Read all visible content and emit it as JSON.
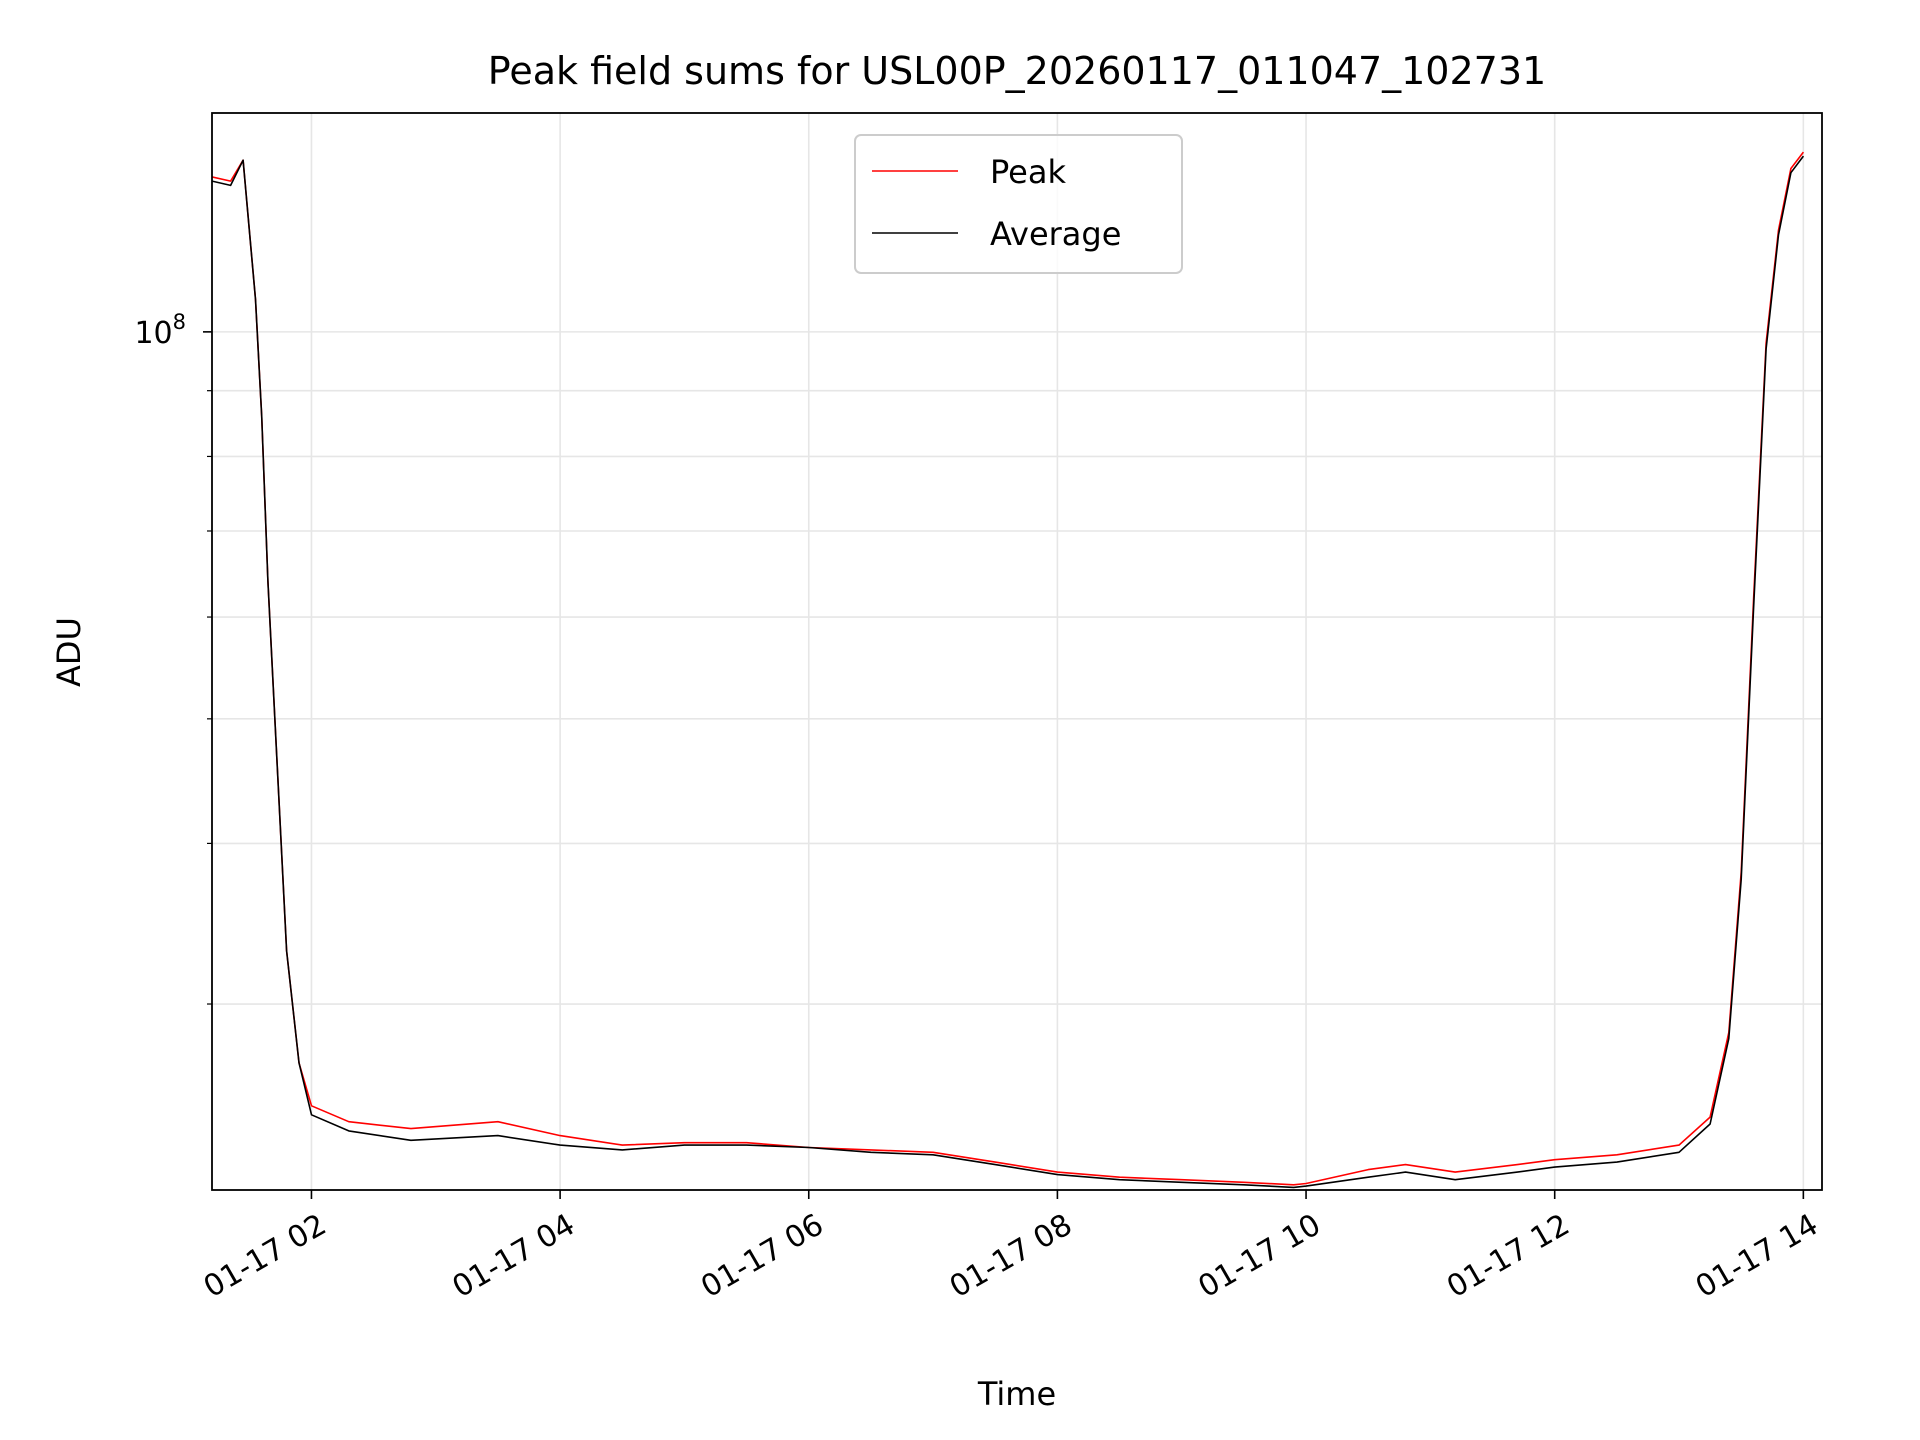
{
  "chart_data": {
    "type": "line",
    "title": "Peak field sums for USL00P_20260117_011047_102731",
    "xlabel": "Time",
    "ylabel": "ADU",
    "y_scale": "log",
    "ylim": [
      21500000,
      148000000
    ],
    "xlim_hours": [
      1.2,
      14.15
    ],
    "x_ticks": [
      {
        "hour": 2,
        "label": "01-17 02"
      },
      {
        "hour": 4,
        "label": "01-17 04"
      },
      {
        "hour": 6,
        "label": "01-17 06"
      },
      {
        "hour": 8,
        "label": "01-17 08"
      },
      {
        "hour": 10,
        "label": "01-17 10"
      },
      {
        "hour": 12,
        "label": "01-17 12"
      },
      {
        "hour": 14,
        "label": "01-17 14"
      }
    ],
    "y_major_ticks": [
      {
        "value": 100000000,
        "base": "10",
        "exponent": "8"
      }
    ],
    "y_minor_ticks": [
      30000000,
      40000000,
      50000000,
      60000000,
      70000000,
      80000000,
      90000000,
      200000000
    ],
    "grid": true,
    "legend_position": "top-center",
    "colors": {
      "peak": "#ff0000",
      "average": "#000000",
      "grid": "#e6e6e6"
    },
    "series": [
      {
        "name": "Peak",
        "color": "#ff0000",
        "x_hours": [
          1.2,
          1.35,
          1.45,
          1.55,
          1.6,
          1.65,
          1.72,
          1.8,
          1.9,
          2.0,
          2.3,
          2.8,
          3.5,
          4.0,
          4.5,
          5.0,
          5.5,
          6.0,
          6.5,
          7.0,
          7.5,
          8.0,
          8.5,
          9.0,
          9.5,
          9.9,
          10.0,
          10.5,
          10.8,
          11.2,
          11.7,
          12.0,
          12.5,
          13.0,
          13.25,
          13.4,
          13.5,
          13.6,
          13.7,
          13.8,
          13.9,
          14.0
        ],
        "y": [
          132000000,
          131000000,
          136000000,
          106000000,
          86000000,
          64000000,
          47000000,
          33000000,
          27000000,
          25000000,
          24300000,
          24000000,
          24300000,
          23700000,
          23300000,
          23400000,
          23400000,
          23200000,
          23100000,
          23000000,
          22600000,
          22200000,
          22000000,
          21900000,
          21800000,
          21700000,
          21750000,
          22300000,
          22500000,
          22200000,
          22500000,
          22700000,
          22900000,
          23300000,
          24500000,
          28500000,
          38000000,
          62000000,
          98000000,
          120000000,
          134000000,
          138000000
        ]
      },
      {
        "name": "Average",
        "color": "#000000",
        "x_hours": [
          1.2,
          1.35,
          1.45,
          1.55,
          1.6,
          1.65,
          1.72,
          1.8,
          1.9,
          2.0,
          2.3,
          2.8,
          3.5,
          4.0,
          4.5,
          5.0,
          5.5,
          6.0,
          6.5,
          7.0,
          7.5,
          8.0,
          8.5,
          9.0,
          9.5,
          9.9,
          10.0,
          10.5,
          10.8,
          11.2,
          11.7,
          12.0,
          12.5,
          13.0,
          13.25,
          13.4,
          13.5,
          13.6,
          13.7,
          13.8,
          13.9,
          14.0
        ],
        "y": [
          131000000,
          130000000,
          136000000,
          106000000,
          86000000,
          64000000,
          47000000,
          33000000,
          27000000,
          24600000,
          23900000,
          23500000,
          23700000,
          23300000,
          23100000,
          23300000,
          23300000,
          23200000,
          23000000,
          22900000,
          22500000,
          22100000,
          21900000,
          21800000,
          21700000,
          21600000,
          21650000,
          22000000,
          22200000,
          21900000,
          22200000,
          22400000,
          22600000,
          23000000,
          24200000,
          28200000,
          37500000,
          61000000,
          97000000,
          119000000,
          133000000,
          137000000
        ]
      }
    ]
  }
}
